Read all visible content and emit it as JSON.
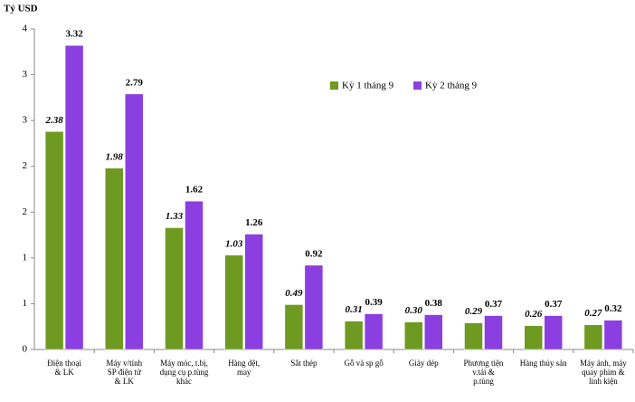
{
  "chart_data": {
    "type": "bar",
    "y_label": "Tỷ USD",
    "categories": [
      "Điện thoại\n& LK",
      "Máy v/tính\nSP điện tử\n& LK",
      "Máy móc, t.bị,\ndụng cụ p.tùng\nkhác",
      "Hàng dệt,\nmay",
      "Sắt thép",
      "Gỗ và sp gỗ",
      "Giày dép",
      "Phương tiện\nv.tải &\np.tùng",
      "Hàng thủy sản",
      "Máy ảnh, máy\nquay phim &\nlinh kiện"
    ],
    "series": [
      {
        "name": "Kỳ 1 tháng 9",
        "color": "#6e9a22",
        "values": [
          2.38,
          1.98,
          1.33,
          1.03,
          0.49,
          0.31,
          0.3,
          0.29,
          0.26,
          0.27
        ],
        "value_labels": [
          "2.38",
          "1.98",
          "1.33",
          "1.03",
          "0.49",
          "0.31",
          "0.30",
          "0.29",
          "0.26",
          "0.27"
        ]
      },
      {
        "name": "Kỳ 2 tháng 9",
        "color": "#8b3fe0",
        "values": [
          3.32,
          2.79,
          1.62,
          1.26,
          0.92,
          0.39,
          0.38,
          0.37,
          0.37,
          0.32
        ]
      }
    ],
    "ylim": [
      0,
      3.5
    ],
    "yticks": [
      0,
      {
        "value": 0.5,
        "label": "1"
      },
      1,
      {
        "value": 1.5,
        "label": "2"
      },
      2,
      {
        "value": 2.5,
        "label": "3"
      },
      3,
      {
        "value": 3.5,
        "label": "4"
      }
    ]
  }
}
